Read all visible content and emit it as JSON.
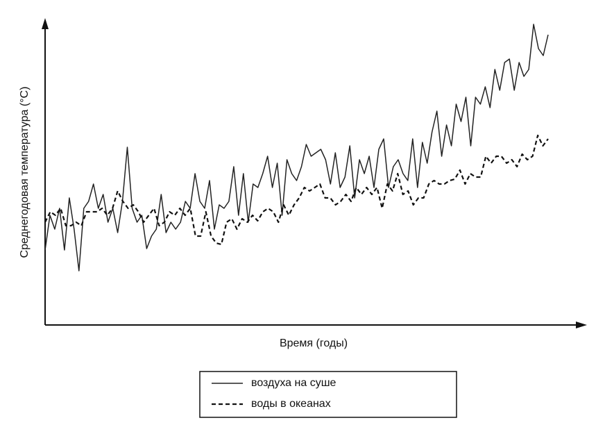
{
  "chart_data": {
    "type": "line",
    "x_label": "Время (годы)",
    "y_label": "Среднегодовая температура (°C)",
    "ylim": [
      0,
      438
    ],
    "series": [
      {
        "name": "воздуха на суше",
        "color": "#222222",
        "dash": false,
        "values": [
          108,
          158,
          138,
          168,
          108,
          183,
          138,
          78,
          168,
          178,
          203,
          168,
          188,
          148,
          168,
          133,
          178,
          256,
          168,
          148,
          158,
          110,
          128,
          138,
          188,
          133,
          148,
          138,
          148,
          178,
          168,
          218,
          178,
          168,
          208,
          138,
          173,
          168,
          178,
          228,
          158,
          218,
          148,
          203,
          198,
          218,
          243,
          198,
          233,
          158,
          238,
          218,
          208,
          228,
          260,
          243,
          248,
          253,
          238,
          203,
          248,
          198,
          213,
          258,
          183,
          238,
          218,
          243,
          198,
          253,
          268,
          198,
          228,
          238,
          218,
          208,
          268,
          198,
          263,
          233,
          278,
          308,
          243,
          288,
          258,
          318,
          293,
          328,
          258,
          328,
          318,
          343,
          313,
          368,
          338,
          378,
          383,
          338,
          378,
          358,
          368,
          433,
          398,
          388,
          418
        ]
      },
      {
        "name": "воды в океанах",
        "color": "#111111",
        "dash": true,
        "values": [
          148,
          163,
          158,
          168,
          143,
          143,
          148,
          143,
          163,
          163,
          163,
          168,
          158,
          168,
          193,
          178,
          168,
          173,
          163,
          148,
          158,
          168,
          143,
          148,
          163,
          158,
          168,
          158,
          168,
          128,
          128,
          163,
          128,
          118,
          116,
          148,
          153,
          138,
          153,
          148,
          158,
          150,
          163,
          168,
          163,
          148,
          173,
          158,
          173,
          183,
          198,
          193,
          198,
          203,
          183,
          183,
          173,
          178,
          188,
          178,
          198,
          188,
          198,
          188,
          198,
          168,
          203,
          193,
          218,
          188,
          193,
          173,
          183,
          183,
          203,
          208,
          203,
          203,
          208,
          210,
          223,
          203,
          218,
          213,
          213,
          243,
          233,
          243,
          243,
          233,
          238,
          228,
          246,
          238,
          243,
          273,
          258,
          268
        ]
      }
    ]
  }
}
